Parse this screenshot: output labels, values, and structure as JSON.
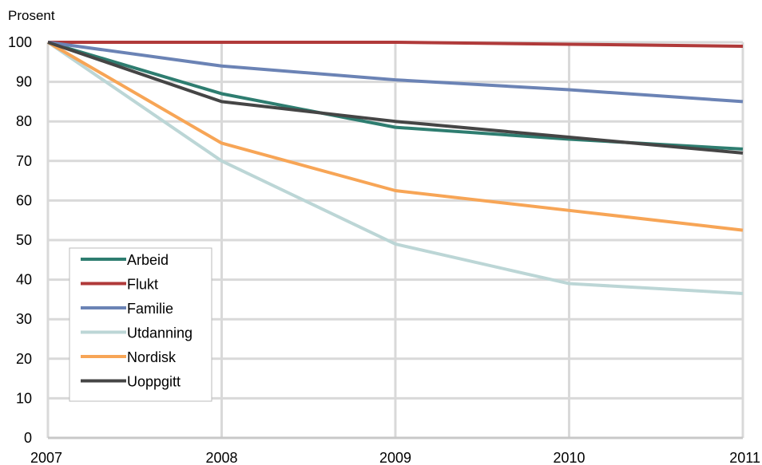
{
  "chart_data": {
    "type": "line",
    "ylabel": "Prosent",
    "x": [
      "2007",
      "2008",
      "2009",
      "2010",
      "2011"
    ],
    "ylim": [
      0,
      100
    ],
    "yticks": [
      "0",
      "10",
      "20",
      "30",
      "40",
      "50",
      "60",
      "70",
      "80",
      "90",
      "100"
    ],
    "grid": true,
    "legend_position": "bottom-left",
    "series": [
      {
        "name": "Arbeid",
        "color": "#2e7d70",
        "values": [
          100,
          87,
          78.5,
          75.5,
          73
        ]
      },
      {
        "name": "Flukt",
        "color": "#b03a3a",
        "values": [
          100,
          100,
          100,
          99.5,
          99
        ]
      },
      {
        "name": "Familie",
        "color": "#6b83b5",
        "values": [
          100,
          94,
          90.5,
          88,
          85
        ]
      },
      {
        "name": "Utdanning",
        "color": "#bcd6d6",
        "values": [
          100,
          70,
          49,
          39,
          36.5
        ]
      },
      {
        "name": "Nordisk",
        "color": "#f7a556",
        "values": [
          100,
          74.5,
          62.5,
          57.5,
          52.5
        ]
      },
      {
        "name": "Uoppgitt",
        "color": "#454545",
        "values": [
          100,
          85,
          80,
          76,
          72
        ]
      }
    ]
  }
}
